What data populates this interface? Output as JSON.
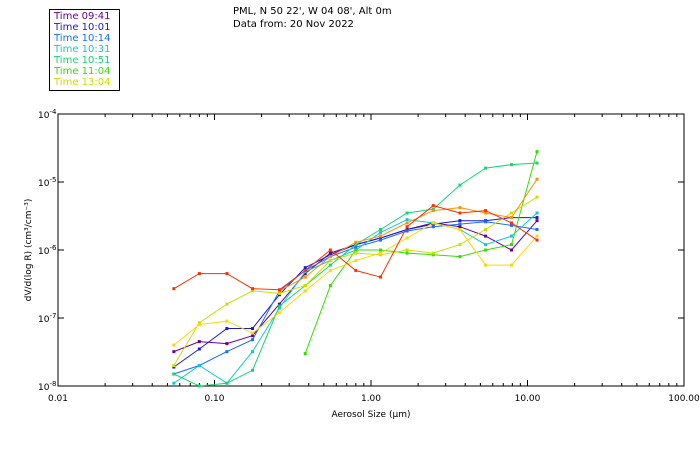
{
  "title": {
    "line1": "PML, N 50 22', W 04 08', Alt 0m",
    "line2": "Data from: 20 Nov 2022"
  },
  "colors": [
    "#6a0090",
    "#1818d8",
    "#1a6cff",
    "#10c8d8",
    "#10d870",
    "#30e000",
    "#c8e000",
    "#ffd800",
    "#ff9000",
    "#ff3000"
  ],
  "chart_data": {
    "type": "line",
    "title": "PML, N 50 22', W 04 08', Alt 0m",
    "subtitle": "Data from: 20 Nov 2022",
    "xlabel": "Aerosol Size (µm)",
    "ylabel": "dV/d(log R) (cm³/cm⁻³)",
    "xscale": "log",
    "yscale": "log",
    "xlim": [
      0.01,
      100
    ],
    "ylim": [
      1e-08,
      0.0001
    ],
    "xticks": [
      {
        "value": 0.01,
        "label": "0.01"
      },
      {
        "value": 0.1,
        "label": "0.10"
      },
      {
        "value": 1,
        "label": "1.00"
      },
      {
        "value": 10,
        "label": "10.00"
      },
      {
        "value": 100,
        "label": "100.00"
      }
    ],
    "yticks": [
      {
        "value": 1e-08,
        "base": "10",
        "exp": "-8"
      },
      {
        "value": 1e-07,
        "base": "10",
        "exp": "-7"
      },
      {
        "value": 1e-06,
        "base": "10",
        "exp": "-6"
      },
      {
        "value": 1e-05,
        "base": "10",
        "exp": "-5"
      },
      {
        "value": 0.0001,
        "base": "10",
        "exp": "-4"
      }
    ],
    "x": [
      0.055,
      0.08,
      0.12,
      0.175,
      0.26,
      0.38,
      0.55,
      0.8,
      1.15,
      1.7,
      2.5,
      3.7,
      5.4,
      7.9,
      11.5
    ],
    "legend": [
      {
        "label": "Time 09:41",
        "color": "#6a0090"
      },
      {
        "label": "Time 10:01",
        "color": "#1818d8"
      },
      {
        "label": "Time 10:14",
        "color": "#1a6cff"
      },
      {
        "label": "Time 10:31",
        "color": "#10c8d8"
      },
      {
        "label": "Time 10:51",
        "color": "#10d870"
      },
      {
        "label": "Time 11:04",
        "color": "#30e000"
      },
      {
        "label": "Time 13:04",
        "color": "#c8e000"
      }
    ],
    "series": [
      {
        "name": "Time 09:41",
        "color": "#6a0090",
        "values": [
          3.2e-08,
          4.5e-08,
          4.2e-08,
          5.5e-08,
          1.6e-07,
          4.5e-07,
          9e-07,
          1.2e-06,
          1.5e-06,
          2e-06,
          2.5e-06,
          2.2e-06,
          1.6e-06,
          1e-06,
          2.7e-06
        ]
      },
      {
        "name": "Time 10:01",
        "color": "#1818d8",
        "values": [
          1.9e-08,
          3.5e-08,
          7e-08,
          7e-08,
          2.2e-07,
          5.5e-07,
          8.5e-07,
          1.2e-06,
          1.5e-06,
          2e-06,
          2.4e-06,
          2.7e-06,
          2.7e-06,
          3e-06,
          3e-06
        ]
      },
      {
        "name": "Time 10:14",
        "color": "#1a6cff",
        "values": [
          1.5e-08,
          2e-08,
          3.2e-08,
          4.8e-08,
          2.5e-07,
          5e-07,
          8e-07,
          1.1e-06,
          1.4e-06,
          1.9e-06,
          2.2e-06,
          2.4e-06,
          2.6e-06,
          2.3e-06,
          2e-06
        ]
      },
      {
        "name": "Time 10:31",
        "color": "#10c8d8",
        "values": [
          1.1e-08,
          2e-08,
          1.1e-08,
          3.2e-08,
          1.4e-07,
          4.8e-07,
          7e-07,
          1e-06,
          1.8e-06,
          2.8e-06,
          2.5e-06,
          2e-06,
          1.2e-06,
          1.6e-06,
          3.5e-06
        ]
      },
      {
        "name": "Time 10:51",
        "color": "#10d870",
        "values": [
          1.5e-08,
          1e-08,
          1.1e-08,
          1.7e-08,
          1.5e-07,
          3e-07,
          6e-07,
          1.2e-06,
          2e-06,
          3.5e-06,
          4e-06,
          9e-06,
          1.6e-05,
          1.8e-05,
          1.9e-05
        ]
      },
      {
        "name": "Time 11:04",
        "color": "#30e000",
        "values": [
          null,
          null,
          null,
          null,
          null,
          3e-08,
          3e-07,
          1e-06,
          1e-06,
          9e-07,
          8.5e-07,
          8e-07,
          1e-06,
          1.2e-06,
          2.8e-05
        ]
      },
      {
        "name": "Time 13:04",
        "color": "#c8e000",
        "values": [
          2e-08,
          8.5e-08,
          1.6e-07,
          2.5e-07,
          2.3e-07,
          3e-07,
          7e-07,
          9e-07,
          8.5e-07,
          1e-06,
          9e-07,
          1.2e-06,
          2e-06,
          3.5e-06,
          6e-06
        ]
      },
      {
        "name": "",
        "color": "#ffd800",
        "values": [
          4e-08,
          8e-08,
          9e-08,
          6e-08,
          1.2e-07,
          2.5e-07,
          5e-07,
          7e-07,
          9e-07,
          1.5e-06,
          2.5e-06,
          2e-06,
          6e-07,
          6e-07,
          1.6e-06
        ]
      },
      {
        "name": "",
        "color": "#ff9000",
        "values": [
          null,
          null,
          null,
          null,
          2.5e-07,
          4e-07,
          8e-07,
          1.3e-06,
          1.6e-06,
          2.5e-06,
          3.8e-06,
          4.2e-06,
          3.5e-06,
          3e-06,
          1.1e-05
        ]
      },
      {
        "name": "",
        "color": "#ff3000",
        "values": [
          2.7e-07,
          4.5e-07,
          4.5e-07,
          2.7e-07,
          2.6e-07,
          5e-07,
          1e-06,
          5e-07,
          4e-07,
          2.2e-06,
          4.5e-06,
          3.5e-06,
          3.8e-06,
          2.5e-06,
          1.4e-06
        ]
      }
    ]
  }
}
